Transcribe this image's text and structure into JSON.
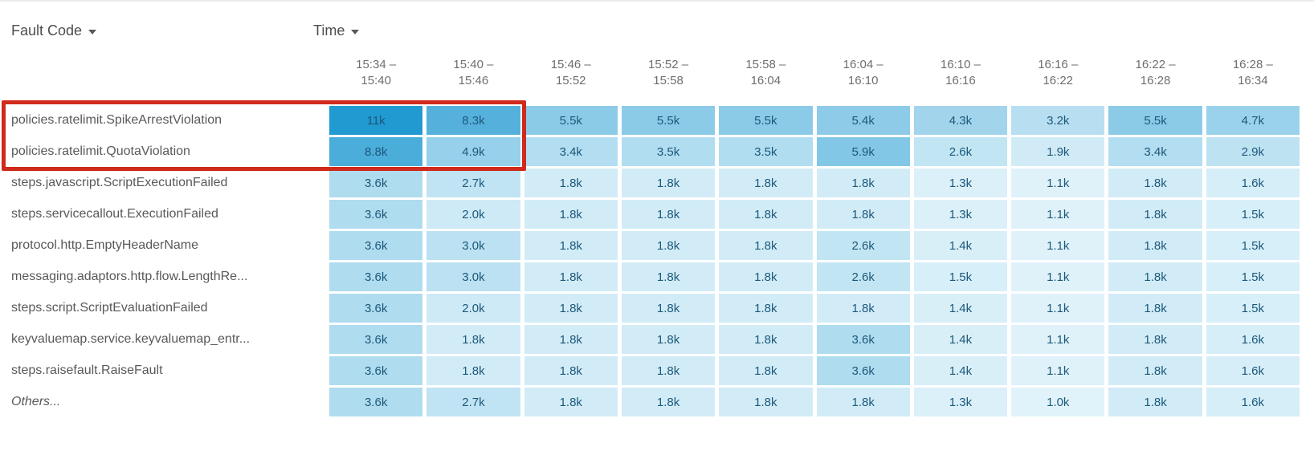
{
  "controls": {
    "fault_code_label": "Fault Code",
    "time_label": "Time"
  },
  "annotation": {
    "type": "highlight-box",
    "color": "#cf2a1c",
    "highlighted_rows": [
      "policies.ratelimit.SpikeArrestViolation",
      "policies.ratelimit.QuotaViolation"
    ],
    "highlighted_columns": [
      "15:34 – 15:40",
      "15:40 – 15:46"
    ]
  },
  "chart_data": {
    "type": "heatmap",
    "xlabel": "Time",
    "ylabel": "Fault Code",
    "value_unit": "k",
    "legend_position": "none",
    "grid": false,
    "heat_scale": {
      "min_value_k": 1.0,
      "max_value_k": 11,
      "min_color": "#e1f3fa",
      "max_color": "#2199d1"
    },
    "columns": [
      {
        "line1": "15:34 –",
        "line2": "15:40"
      },
      {
        "line1": "15:40 –",
        "line2": "15:46"
      },
      {
        "line1": "15:46 –",
        "line2": "15:52"
      },
      {
        "line1": "15:52 –",
        "line2": "15:58"
      },
      {
        "line1": "15:58 –",
        "line2": "16:04"
      },
      {
        "line1": "16:04 –",
        "line2": "16:10"
      },
      {
        "line1": "16:10 –",
        "line2": "16:16"
      },
      {
        "line1": "16:16 –",
        "line2": "16:22"
      },
      {
        "line1": "16:22 –",
        "line2": "16:28"
      },
      {
        "line1": "16:28 –",
        "line2": "16:34"
      }
    ],
    "rows": [
      {
        "label": "policies.ratelimit.SpikeArrestViolation",
        "values": [
          "11k",
          "8.3k",
          "5.5k",
          "5.5k",
          "5.5k",
          "5.4k",
          "4.3k",
          "3.2k",
          "5.5k",
          "4.7k"
        ]
      },
      {
        "label": "policies.ratelimit.QuotaViolation",
        "values": [
          "8.8k",
          "4.9k",
          "3.4k",
          "3.5k",
          "3.5k",
          "5.9k",
          "2.6k",
          "1.9k",
          "3.4k",
          "2.9k"
        ]
      },
      {
        "label": "steps.javascript.ScriptExecutionFailed",
        "values": [
          "3.6k",
          "2.7k",
          "1.8k",
          "1.8k",
          "1.8k",
          "1.8k",
          "1.3k",
          "1.1k",
          "1.8k",
          "1.6k"
        ]
      },
      {
        "label": "steps.servicecallout.ExecutionFailed",
        "values": [
          "3.6k",
          "2.0k",
          "1.8k",
          "1.8k",
          "1.8k",
          "1.8k",
          "1.3k",
          "1.1k",
          "1.8k",
          "1.5k"
        ]
      },
      {
        "label": "protocol.http.EmptyHeaderName",
        "values": [
          "3.6k",
          "3.0k",
          "1.8k",
          "1.8k",
          "1.8k",
          "2.6k",
          "1.4k",
          "1.1k",
          "1.8k",
          "1.5k"
        ]
      },
      {
        "label": "messaging.adaptors.http.flow.LengthRe...",
        "values": [
          "3.6k",
          "3.0k",
          "1.8k",
          "1.8k",
          "1.8k",
          "2.6k",
          "1.5k",
          "1.1k",
          "1.8k",
          "1.5k"
        ]
      },
      {
        "label": "steps.script.ScriptEvaluationFailed",
        "values": [
          "3.6k",
          "2.0k",
          "1.8k",
          "1.8k",
          "1.8k",
          "1.8k",
          "1.4k",
          "1.1k",
          "1.8k",
          "1.5k"
        ]
      },
      {
        "label": "keyvaluemap.service.keyvaluemap_entr...",
        "values": [
          "3.6k",
          "1.8k",
          "1.8k",
          "1.8k",
          "1.8k",
          "3.6k",
          "1.4k",
          "1.1k",
          "1.8k",
          "1.6k"
        ]
      },
      {
        "label": "steps.raisefault.RaiseFault",
        "values": [
          "3.6k",
          "1.8k",
          "1.8k",
          "1.8k",
          "1.8k",
          "3.6k",
          "1.4k",
          "1.1k",
          "1.8k",
          "1.6k"
        ]
      },
      {
        "label": "Others...",
        "emphasis": true,
        "values": [
          "3.6k",
          "2.7k",
          "1.8k",
          "1.8k",
          "1.8k",
          "1.8k",
          "1.3k",
          "1.0k",
          "1.8k",
          "1.6k"
        ]
      }
    ]
  }
}
